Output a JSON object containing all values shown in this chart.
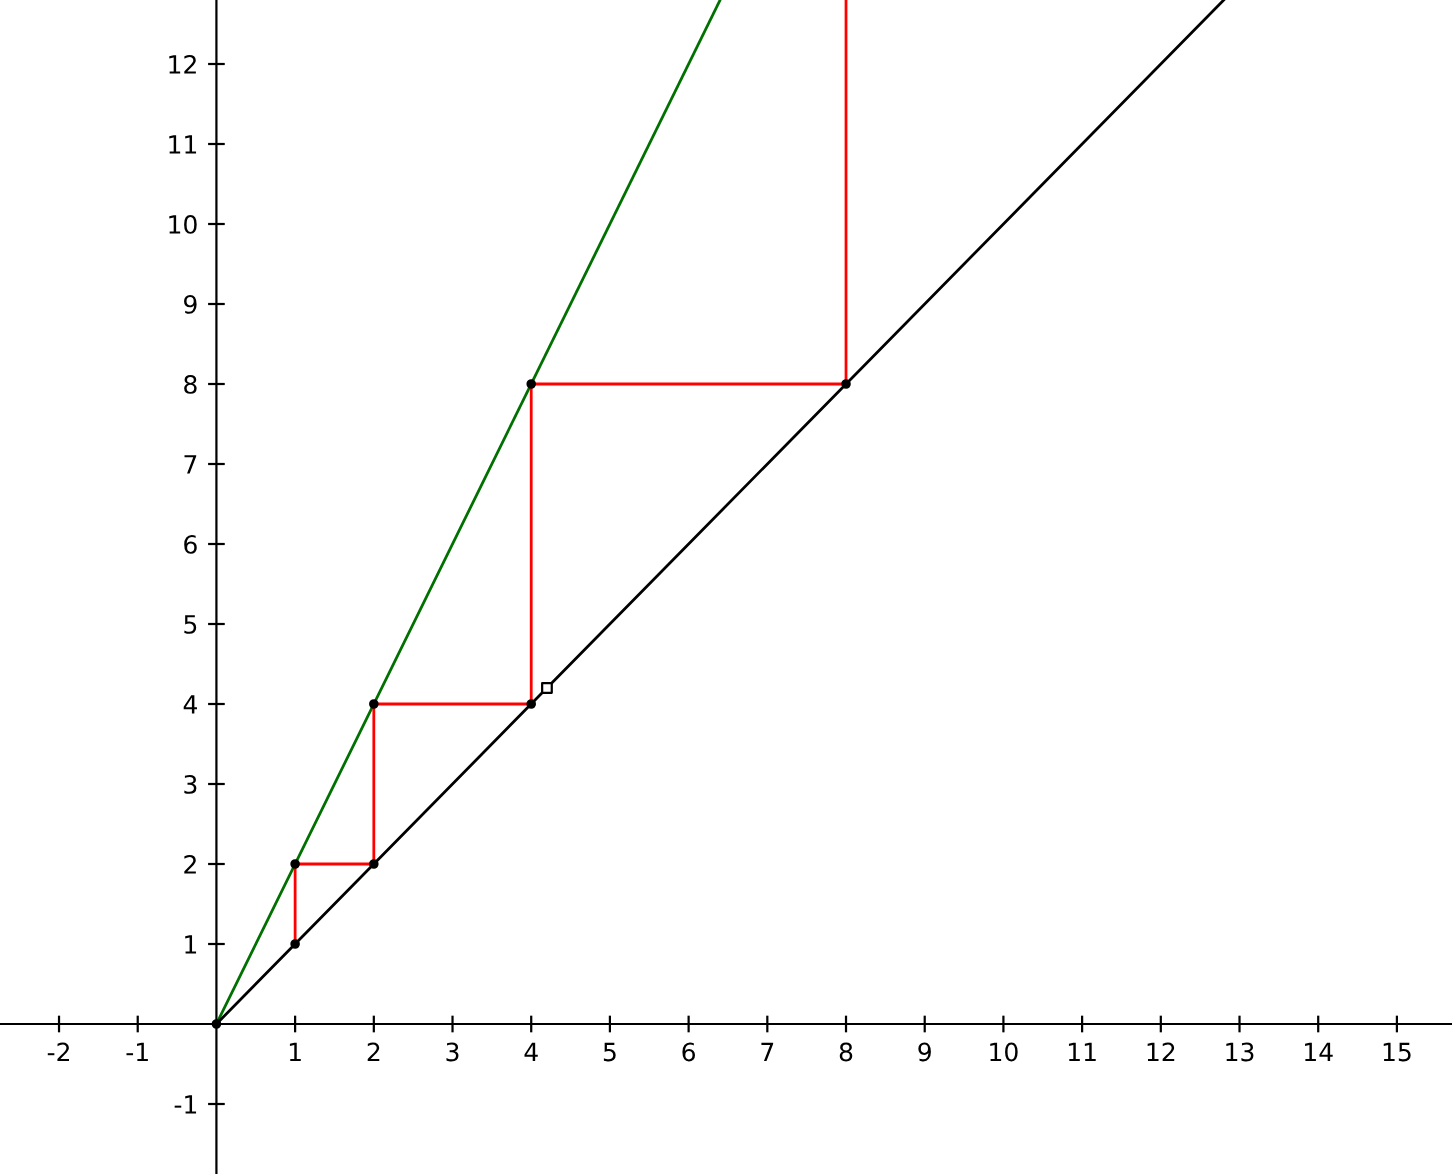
{
  "chart_data": {
    "type": "line",
    "xlim": [
      -2.75,
      15.7
    ],
    "ylim": [
      -1.875,
      12.8
    ],
    "xticks": [
      -2,
      -1,
      1,
      2,
      3,
      4,
      5,
      6,
      7,
      8,
      9,
      10,
      11,
      12,
      13,
      14,
      15
    ],
    "yticks": [
      -1,
      1,
      2,
      3,
      4,
      5,
      6,
      7,
      8,
      9,
      10,
      11,
      12
    ],
    "grid": false,
    "legend": false,
    "series": [
      {
        "color": "#007000",
        "x": [
          0,
          6.4
        ],
        "values": [
          0,
          12.8
        ]
      },
      {
        "color": "#000000",
        "x": [
          0,
          12.8
        ],
        "values": [
          0,
          12.8
        ]
      },
      {
        "color": "#ff0000",
        "x": [
          1,
          1,
          2,
          2,
          4,
          4,
          8,
          8
        ],
        "values": [
          1,
          2,
          2,
          4,
          4,
          8,
          8,
          12.8
        ]
      },
      {
        "type": "scatter",
        "color": "#000000",
        "marker": "circle",
        "x": [
          0,
          1,
          1,
          2,
          2,
          4,
          4,
          8
        ],
        "values": [
          0,
          1,
          2,
          2,
          4,
          4,
          8,
          8
        ]
      },
      {
        "type": "scatter",
        "color": "#000000",
        "marker": "square",
        "x": [
          4.2
        ],
        "values": [
          4.2
        ]
      }
    ]
  }
}
